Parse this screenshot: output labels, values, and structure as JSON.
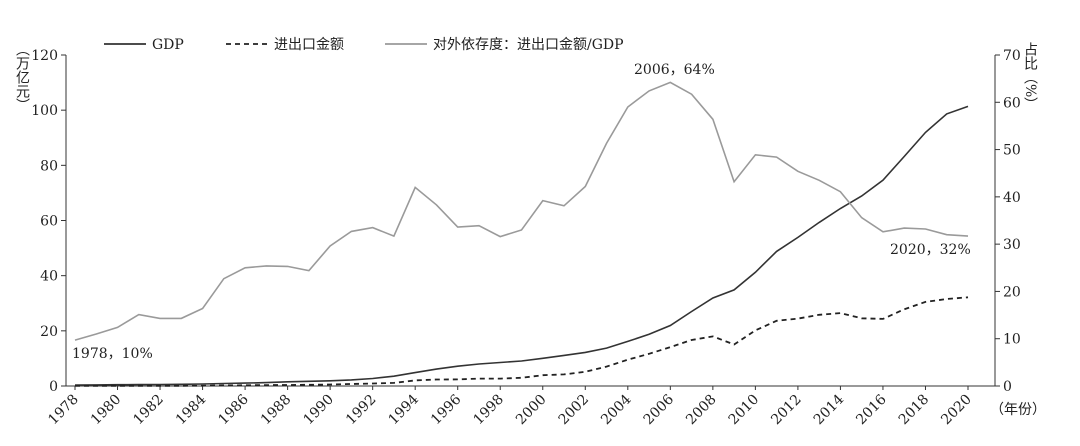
{
  "chart_data": {
    "type": "line",
    "y_label": "（万亿元）",
    "y2_label": "占比（%）",
    "x_label": "（年份）",
    "annotations": [
      "1978，10%",
      "2006，64%",
      "2020，32%"
    ],
    "x": [
      1978,
      1979,
      1980,
      1981,
      1982,
      1983,
      1984,
      1985,
      1986,
      1987,
      1988,
      1989,
      1990,
      1991,
      1992,
      1993,
      1994,
      1995,
      1996,
      1997,
      1998,
      1999,
      2000,
      2001,
      2002,
      2003,
      2004,
      2005,
      2006,
      2007,
      2008,
      2009,
      2010,
      2011,
      2012,
      2013,
      2014,
      2015,
      2016,
      2017,
      2018,
      2019,
      2020
    ],
    "series": [
      {
        "name": "GDP",
        "color": "#333333",
        "dash": "solid",
        "values": [
          0.37,
          0.41,
          0.46,
          0.49,
          0.54,
          0.6,
          0.73,
          0.91,
          1.04,
          1.22,
          1.52,
          1.72,
          1.89,
          2.2,
          2.72,
          3.57,
          4.86,
          6.13,
          7.18,
          7.97,
          8.52,
          9.06,
          10.03,
          11.09,
          12.17,
          13.74,
          16.18,
          18.73,
          21.94,
          27.01,
          31.92,
          34.85,
          41.21,
          48.79,
          53.86,
          59.3,
          64.36,
          68.89,
          74.64,
          83.2,
          91.93,
          98.65,
          101.36
        ]
      },
      {
        "name": "进出口金额",
        "color": "#222222",
        "dash": "dashed",
        "values": [
          0.04,
          0.05,
          0.06,
          0.07,
          0.08,
          0.09,
          0.12,
          0.21,
          0.26,
          0.31,
          0.38,
          0.42,
          0.56,
          0.72,
          0.91,
          1.13,
          2.04,
          2.35,
          2.41,
          2.7,
          2.69,
          2.99,
          3.93,
          4.22,
          5.14,
          7.05,
          9.55,
          11.69,
          14.1,
          16.67,
          17.99,
          15.06,
          20.17,
          23.64,
          24.44,
          25.82,
          26.42,
          24.55,
          24.34,
          27.81,
          30.5,
          31.55,
          32.16
        ]
      },
      {
        "name": "对外依存度：进出口金额/GDP",
        "color": "#9a9a9a",
        "dash": "solid",
        "axis": "y2",
        "values": [
          9.7,
          11,
          12.4,
          15.1,
          14.3,
          14.3,
          16.4,
          22.7,
          25,
          25.4,
          25.3,
          24.4,
          29.6,
          32.7,
          33.5,
          31.7,
          42,
          38.3,
          33.6,
          33.9,
          31.6,
          33,
          39.2,
          38.1,
          42.2,
          51.3,
          59,
          62.4,
          64.2,
          61.7,
          56.4,
          43.2,
          48.9,
          48.4,
          45.4,
          43.5,
          41.1,
          35.6,
          32.6,
          33.4,
          33.2,
          32,
          31.7
        ]
      }
    ],
    "xlim": [
      1978,
      2020
    ],
    "xticks": [
      1978,
      1980,
      1982,
      1984,
      1986,
      1988,
      1990,
      1992,
      1994,
      1996,
      1998,
      2000,
      2002,
      2004,
      2006,
      2008,
      2010,
      2012,
      2014,
      2016,
      2018,
      2020
    ],
    "ylim": [
      0,
      120
    ],
    "yticks": [
      0,
      20,
      40,
      60,
      80,
      100,
      120
    ],
    "y2lim": [
      0,
      70
    ],
    "y2ticks": [
      0,
      10,
      20,
      30,
      40,
      50,
      60,
      70
    ],
    "grid": false,
    "legend": "top"
  }
}
